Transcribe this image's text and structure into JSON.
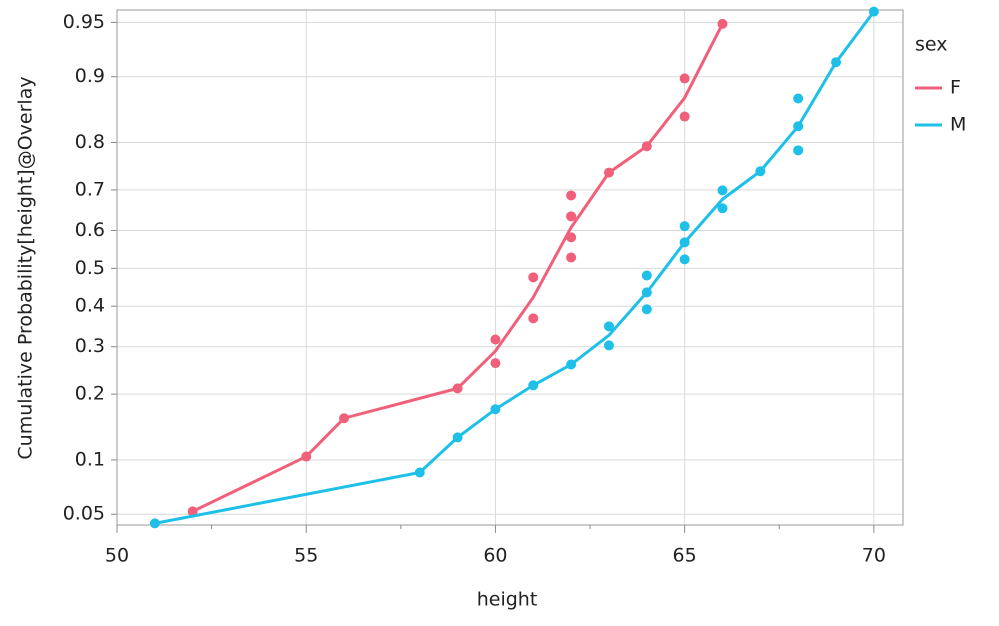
{
  "chart_data": {
    "type": "probability-scatter-line",
    "x_label": "height",
    "y_label": "Cumulative Probability[height]@Overlay",
    "yscale": "normal-probability",
    "xlim": [
      50,
      70.77
    ],
    "xticks": [
      50,
      55,
      60,
      65,
      70
    ],
    "xminorticks": [
      52.5,
      57.5,
      62.5,
      67.5
    ],
    "ylim": [
      0.043,
      0.958
    ],
    "yticks": [
      0.05,
      0.1,
      0.2,
      0.3,
      0.4,
      0.5,
      0.6,
      0.7,
      0.8,
      0.9,
      0.95
    ],
    "grid": true,
    "legend_title": "sex",
    "legend_position": "right",
    "series": [
      {
        "name": "F",
        "color": "#f0607a",
        "x": [
          52,
          55,
          56,
          59,
          60,
          60,
          61,
          61,
          62,
          62,
          62,
          62,
          63,
          64,
          65,
          65,
          66
        ],
        "values": [
          0.052,
          0.104,
          0.158,
          0.211,
          0.317,
          0.263,
          0.476,
          0.369,
          0.687,
          0.636,
          0.582,
          0.529,
          0.739,
          0.793,
          0.898,
          0.845,
          0.949
        ],
        "line_x": [
          52,
          55,
          56,
          59,
          60,
          61,
          62,
          63,
          64,
          65,
          66
        ],
        "line_values": [
          0.052,
          0.104,
          0.158,
          0.211,
          0.29,
          0.423,
          0.608,
          0.739,
          0.793,
          0.873,
          0.949
        ]
      },
      {
        "name": "M",
        "color": "#1ec0e8",
        "x": [
          51,
          58,
          59,
          60,
          61,
          62,
          63,
          63,
          64,
          64,
          64,
          65,
          65,
          65,
          66,
          66,
          67,
          68,
          68,
          68,
          69,
          70
        ],
        "values": [
          0.044,
          0.086,
          0.129,
          0.173,
          0.217,
          0.26,
          0.349,
          0.303,
          0.481,
          0.436,
          0.392,
          0.611,
          0.569,
          0.524,
          0.699,
          0.656,
          0.742,
          0.872,
          0.829,
          0.785,
          0.916,
          0.957
        ],
        "line_x": [
          51,
          58,
          59,
          60,
          61,
          62,
          63,
          64,
          65,
          66,
          67,
          68,
          69,
          70
        ],
        "line_values": [
          0.044,
          0.086,
          0.129,
          0.173,
          0.217,
          0.26,
          0.327,
          0.436,
          0.569,
          0.678,
          0.742,
          0.829,
          0.916,
          0.957
        ]
      }
    ]
  }
}
